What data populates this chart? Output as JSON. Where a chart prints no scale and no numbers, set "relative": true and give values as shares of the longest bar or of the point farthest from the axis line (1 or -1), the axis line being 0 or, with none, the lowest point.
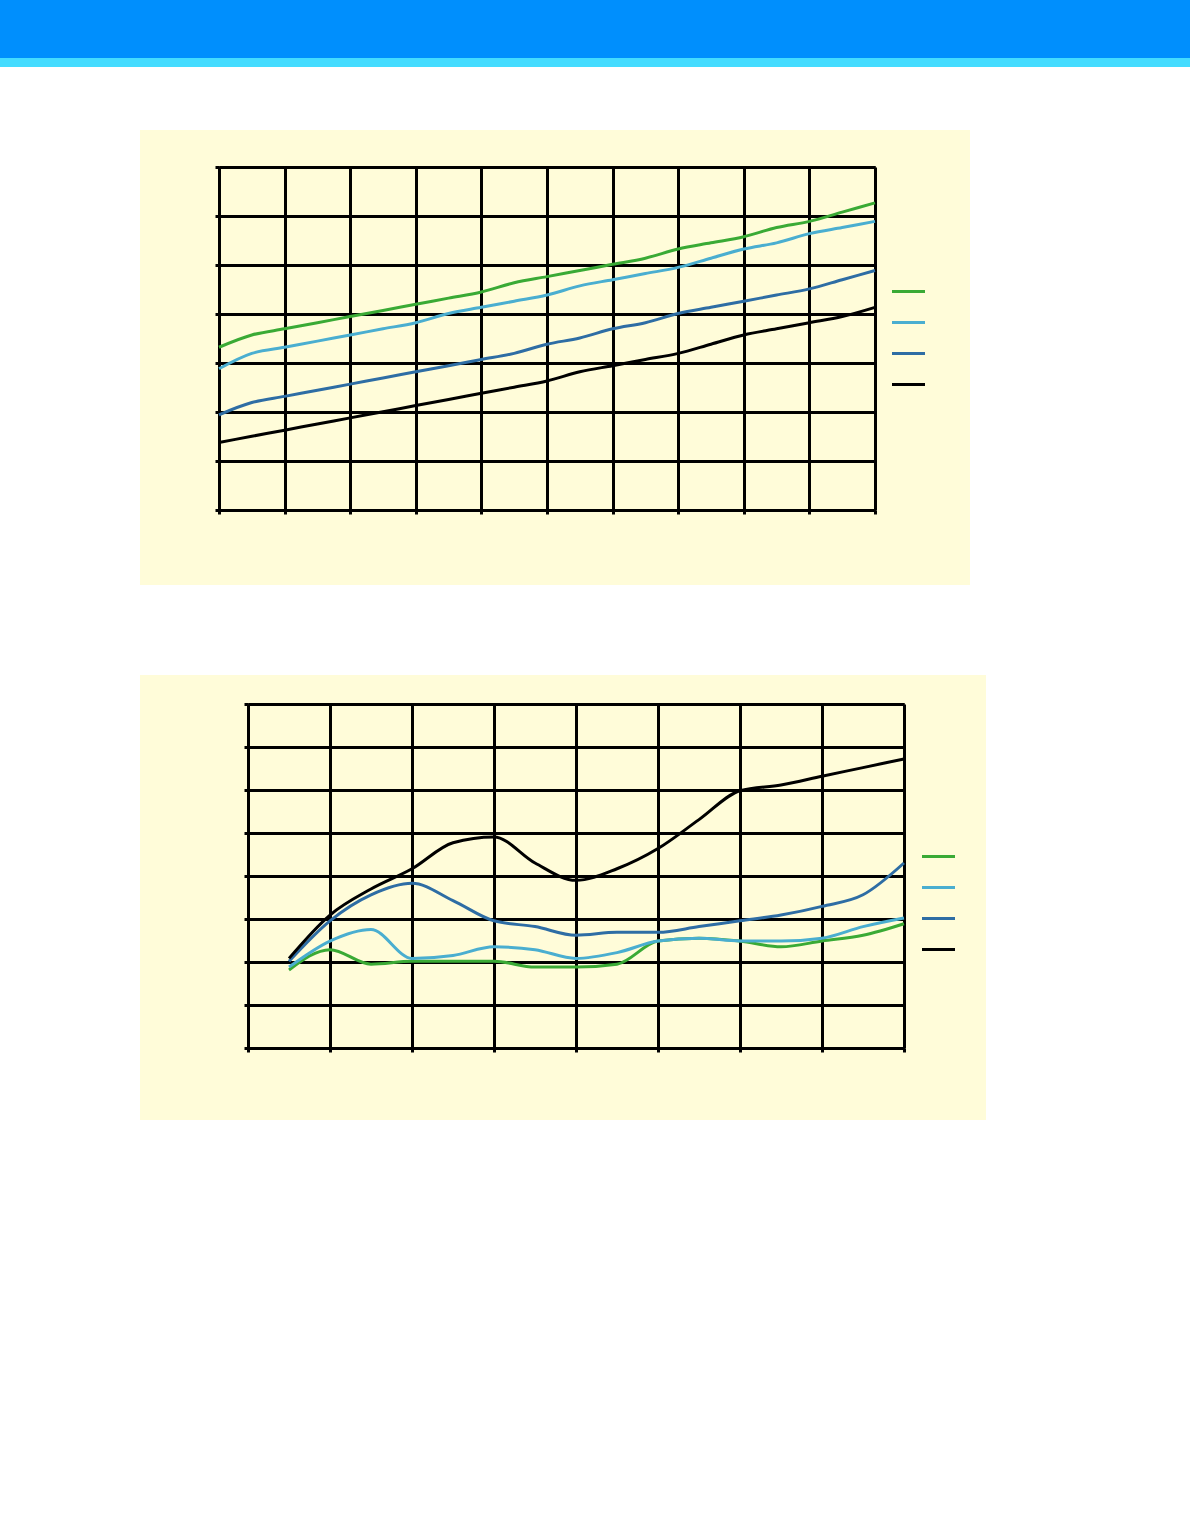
{
  "chart_data": [
    {
      "type": "line",
      "relative": true,
      "grid": true,
      "categories": [
        null,
        null,
        null,
        null,
        null,
        null,
        null,
        null,
        null,
        null,
        null,
        null,
        null,
        null,
        null,
        null,
        null,
        null,
        null,
        null,
        null
      ],
      "series": [
        {
          "color": "#3aaa35",
          "values": [
            0.53,
            0.57,
            0.59,
            0.61,
            0.63,
            0.65,
            0.67,
            0.69,
            0.71,
            0.74,
            0.76,
            0.78,
            0.8,
            0.82,
            0.85,
            0.87,
            0.89,
            0.92,
            0.94,
            0.97,
            1
          ]
        },
        {
          "color": "#4aaed0",
          "values": [
            0.46,
            0.51,
            0.53,
            0.55,
            0.57,
            0.59,
            0.61,
            0.64,
            0.66,
            0.68,
            0.7,
            0.73,
            0.75,
            0.77,
            0.79,
            0.82,
            0.85,
            0.87,
            0.9,
            0.92,
            0.94
          ]
        },
        {
          "color": "#2e6da4",
          "values": [
            0.31,
            0.35,
            0.37,
            0.39,
            0.41,
            0.43,
            0.45,
            0.47,
            0.49,
            0.51,
            0.54,
            0.56,
            0.59,
            0.61,
            0.64,
            0.66,
            0.68,
            0.7,
            0.72,
            0.75,
            0.78
          ]
        },
        {
          "color": "#000000",
          "values": [
            0.22,
            0.24,
            0.26,
            0.28,
            0.3,
            0.32,
            0.34,
            0.36,
            0.38,
            0.4,
            0.42,
            0.45,
            0.47,
            0.49,
            0.51,
            0.54,
            0.57,
            0.59,
            0.61,
            0.63,
            0.66
          ]
        }
      ]
    },
    {
      "type": "line",
      "relative": true,
      "grid": true,
      "categories": [
        null,
        null,
        null,
        null,
        null,
        null,
        null,
        null,
        null,
        null,
        null,
        null,
        null,
        null,
        null,
        null,
        null
      ],
      "series": [
        {
          "color": "#3aaa35",
          "values": [
            null,
            0.27,
            0.34,
            0.29,
            0.3,
            0.3,
            0.3,
            0.28,
            0.28,
            0.29,
            0.37,
            0.38,
            0.37,
            0.35,
            0.37,
            0.39,
            0.43
          ]
        },
        {
          "color": "#4aaed0",
          "values": [
            null,
            0.28,
            0.37,
            0.41,
            0.31,
            0.32,
            0.35,
            0.34,
            0.31,
            0.33,
            0.37,
            0.38,
            0.37,
            0.37,
            0.38,
            0.42,
            0.45
          ]
        },
        {
          "color": "#2e6da4",
          "values": [
            null,
            0.3,
            0.44,
            0.53,
            0.57,
            0.51,
            0.44,
            0.42,
            0.39,
            0.4,
            0.4,
            0.42,
            0.44,
            0.46,
            0.49,
            0.53,
            0.64
          ]
        },
        {
          "color": "#000000",
          "values": [
            null,
            0.31,
            0.46,
            0.55,
            0.62,
            0.71,
            0.73,
            0.64,
            0.58,
            0.62,
            0.69,
            0.79,
            0.89,
            0.91,
            0.94,
            0.97,
            1
          ]
        }
      ]
    }
  ]
}
